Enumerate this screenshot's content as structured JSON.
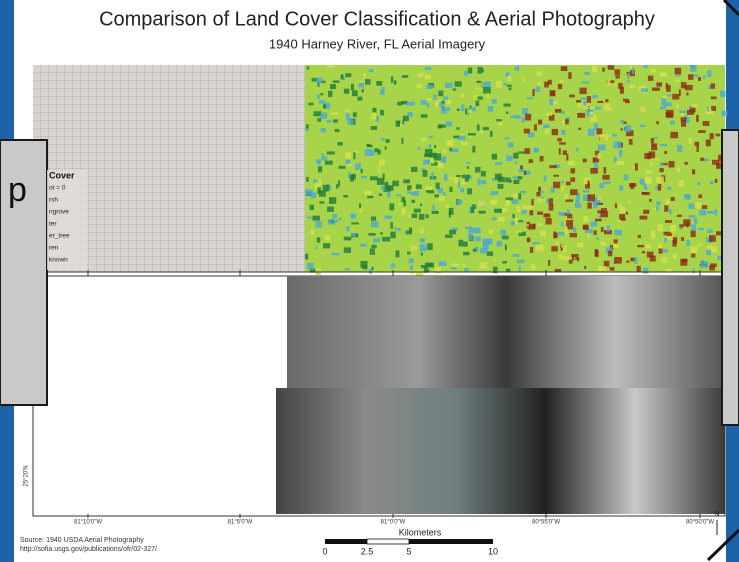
{
  "header": {
    "title": "Comparison of Land Cover Classification & Aerial Photography",
    "subtitle": "1940 Harney River, FL Aerial Imagery"
  },
  "legend": {
    "title": "Cover",
    "items": [
      "ot = 0",
      "rsh",
      "ngrove",
      "ter",
      "er_tree",
      "ren",
      "known"
    ]
  },
  "overlay": {
    "label": "p"
  },
  "axis": {
    "longitudes": [
      "81°10'0\"W",
      "81°5'0\"W",
      "81°0'0\"W",
      "80°55'0\"W",
      "80°50'0\"W"
    ],
    "latitude": "25°20'N"
  },
  "scale_bar": {
    "title": "Kilometers",
    "ticks": [
      "0",
      "2.5",
      "5",
      "10"
    ]
  },
  "north": "N",
  "source": {
    "line1": "Source: 1940 USDA Aerial Photography",
    "line2": "http://sofia.usgs.gov/publications/ofr/02-327/"
  }
}
